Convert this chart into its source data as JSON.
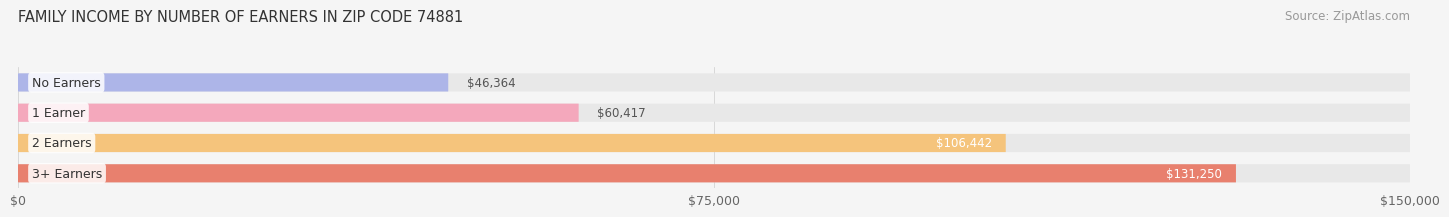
{
  "title": "FAMILY INCOME BY NUMBER OF EARNERS IN ZIP CODE 74881",
  "source": "Source: ZipAtlas.com",
  "categories": [
    "No Earners",
    "1 Earner",
    "2 Earners",
    "3+ Earners"
  ],
  "values": [
    46364,
    60417,
    106442,
    131250
  ],
  "bar_colors": [
    "#adb5e8",
    "#f4a8bc",
    "#f5c47c",
    "#e8806e"
  ],
  "bar_bg_color": "#e8e8e8",
  "value_labels": [
    "$46,364",
    "$60,417",
    "$106,442",
    "$131,250"
  ],
  "x_ticks": [
    0,
    75000,
    150000
  ],
  "x_tick_labels": [
    "$0",
    "$75,000",
    "$150,000"
  ],
  "xlim_max": 150000,
  "background_color": "#f5f5f5",
  "title_fontsize": 10.5,
  "source_fontsize": 8.5,
  "label_fontsize": 9,
  "value_fontsize": 8.5,
  "tick_fontsize": 9
}
